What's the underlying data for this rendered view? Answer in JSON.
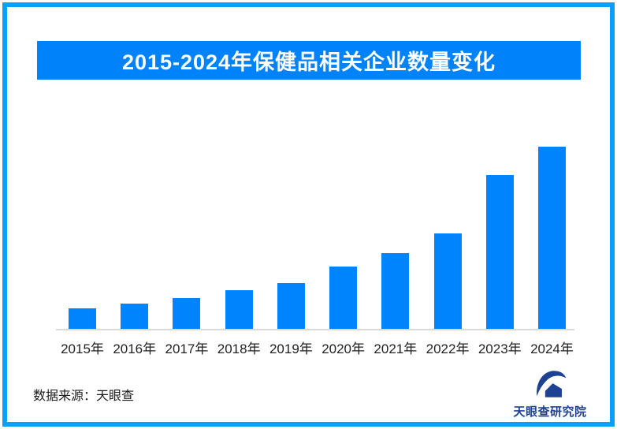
{
  "page": {
    "border_color": "#0A9FF8",
    "background_color": "#FFFFFF"
  },
  "title_banner": {
    "text": "2015-2024年保健品相关企业数量变化",
    "bg_color": "#0082FA",
    "text_color": "#FFFFFF"
  },
  "chart_data": {
    "type": "bar",
    "title": "2015-2024年保健品相关企业数量变化",
    "categories": [
      "2015年",
      "2016年",
      "2017年",
      "2018年",
      "2019年",
      "2020年",
      "2021年",
      "2022年",
      "2023年",
      "2024年"
    ],
    "values_relative_pct": [
      11.3,
      13.9,
      16.9,
      21.2,
      25.1,
      34.2,
      41.6,
      52.4,
      84.4,
      100
    ],
    "value_labels_visible": false,
    "y_axis_visible": false,
    "gridlines": false,
    "legend": "none",
    "bar_color": "#0084FE",
    "axis_line_color": "#D9D9D9",
    "xlabel": "",
    "ylabel": ""
  },
  "footer": {
    "source_text": "数据来源：天眼查",
    "logo": {
      "icon": "tianyancha-eye-logo",
      "label": "天眼查研究院",
      "color": "#1D4293"
    }
  }
}
